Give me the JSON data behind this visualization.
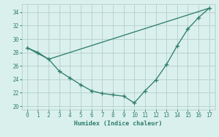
{
  "line1_x": [
    0,
    1,
    2,
    3,
    4,
    5,
    6,
    7,
    8,
    9,
    10,
    11,
    12,
    13,
    14,
    15,
    16,
    17
  ],
  "line1_y": [
    28.7,
    28.0,
    27.0,
    25.2,
    24.2,
    23.2,
    22.3,
    21.9,
    21.7,
    21.5,
    20.5,
    22.3,
    23.9,
    26.2,
    29.0,
    31.5,
    33.2,
    34.6
  ],
  "line2_x": [
    0,
    2,
    17
  ],
  "line2_y": [
    28.7,
    27.0,
    34.6
  ],
  "line_color": "#2e7d6e",
  "bg_color": "#daf0ec",
  "grid_color": "#b0cdc8",
  "xlabel": "Humidex (Indice chaleur)",
  "xlim": [
    -0.5,
    17.5
  ],
  "ylim": [
    19.5,
    35.2
  ],
  "yticks": [
    20,
    22,
    24,
    26,
    28,
    30,
    32,
    34
  ],
  "xticks": [
    0,
    1,
    2,
    3,
    4,
    5,
    6,
    7,
    8,
    9,
    10,
    11,
    12,
    13,
    14,
    15,
    16,
    17
  ],
  "tick_fontsize": 5.5,
  "xlabel_fontsize": 6.5
}
